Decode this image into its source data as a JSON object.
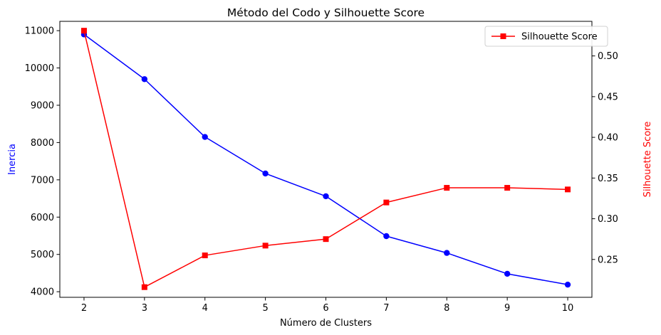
{
  "chart_data": {
    "type": "line",
    "title": "Método del Codo y Silhouette Score",
    "xlabel": "Número de Clusters",
    "ylabel_left": "Inercia",
    "ylabel_right": "Silhouette Score",
    "x": [
      2,
      3,
      4,
      5,
      6,
      7,
      8,
      9,
      10
    ],
    "x_ticks": [
      "2",
      "3",
      "4",
      "5",
      "6",
      "7",
      "8",
      "9",
      "10"
    ],
    "y_left_ticks": [
      "4000",
      "5000",
      "6000",
      "7000",
      "8000",
      "9000",
      "10000",
      "11000"
    ],
    "y_right_ticks": [
      "0.25",
      "0.30",
      "0.35",
      "0.40",
      "0.45",
      "0.50"
    ],
    "ylim_left": [
      3850,
      11250
    ],
    "ylim_right": [
      0.2035,
      0.5425
    ],
    "xlim": [
      1.6,
      10.4
    ],
    "grid": false,
    "legend_position": "upper-right",
    "series": [
      {
        "name": "",
        "axis": "left",
        "color": "#0000ff",
        "marker": "circle",
        "values": [
          10900,
          9700,
          8150,
          7170,
          6560,
          5490,
          5040,
          4480,
          4190
        ]
      },
      {
        "name": "Silhouette Score",
        "axis": "right",
        "color": "#ff0000",
        "marker": "square",
        "values": [
          0.531,
          0.216,
          0.255,
          0.267,
          0.275,
          0.32,
          0.338,
          0.338,
          0.336
        ]
      }
    ]
  }
}
